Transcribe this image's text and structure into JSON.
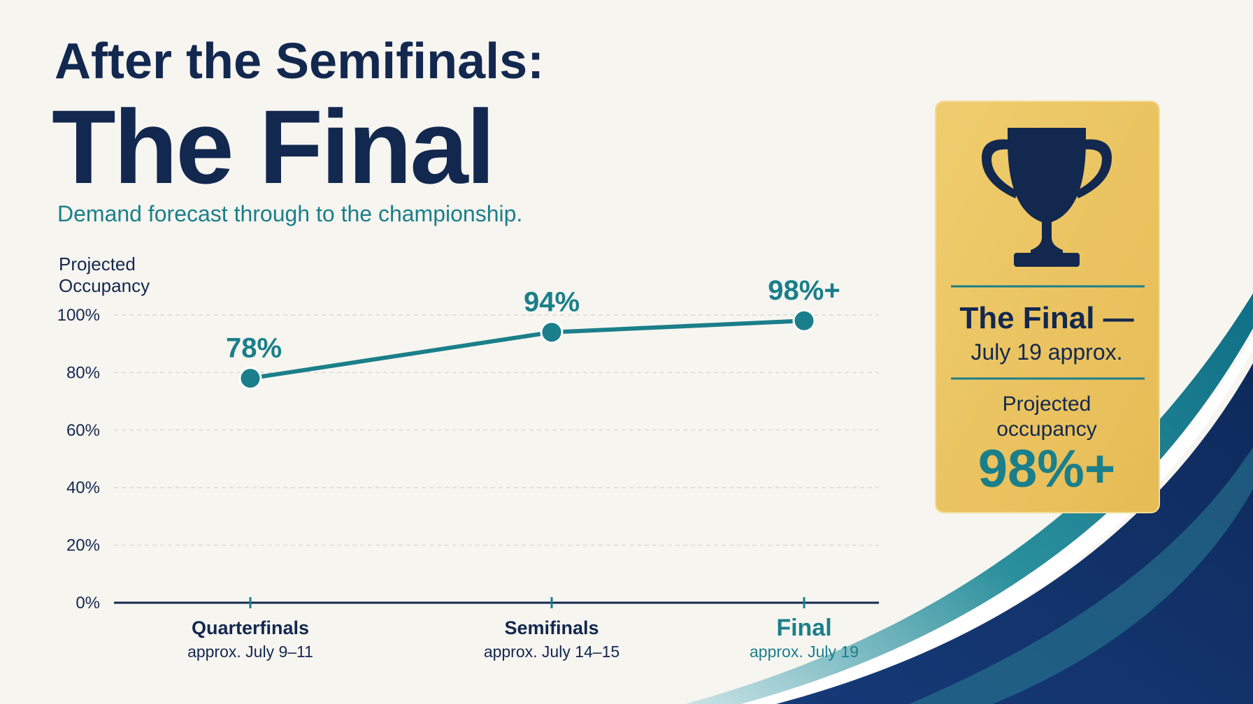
{
  "chart_data": {
    "type": "line",
    "title": "After the Semifinals:",
    "headline": "The Final",
    "subtitle": "Demand forecast through to the championship.",
    "y_label": [
      "Projected",
      "Occupancy"
    ],
    "categories": [
      "Quarterfinals",
      "Semifinals",
      "Final"
    ],
    "category_notes": [
      "approx. July 9–11",
      "approx. July 14–15",
      "approx. July 19"
    ],
    "values": [
      78,
      94,
      98
    ],
    "value_labels": [
      "78%",
      "94%",
      "98%+"
    ],
    "color": "#1a7f8a",
    "ylim": [
      0,
      100
    ],
    "yticks": [
      {
        "value": 0,
        "label": "0%"
      },
      {
        "value": 20,
        "label": "20%"
      },
      {
        "value": 40,
        "label": "40%"
      },
      {
        "value": 60,
        "label": "60%"
      },
      {
        "value": 80,
        "label": "80%"
      },
      {
        "value": 100,
        "label": "100%"
      }
    ],
    "grid": true
  },
  "card": {
    "title": "The Final —",
    "date": "July 19 approx.",
    "label": [
      "Projected",
      "occupancy"
    ],
    "value": "98%+"
  }
}
